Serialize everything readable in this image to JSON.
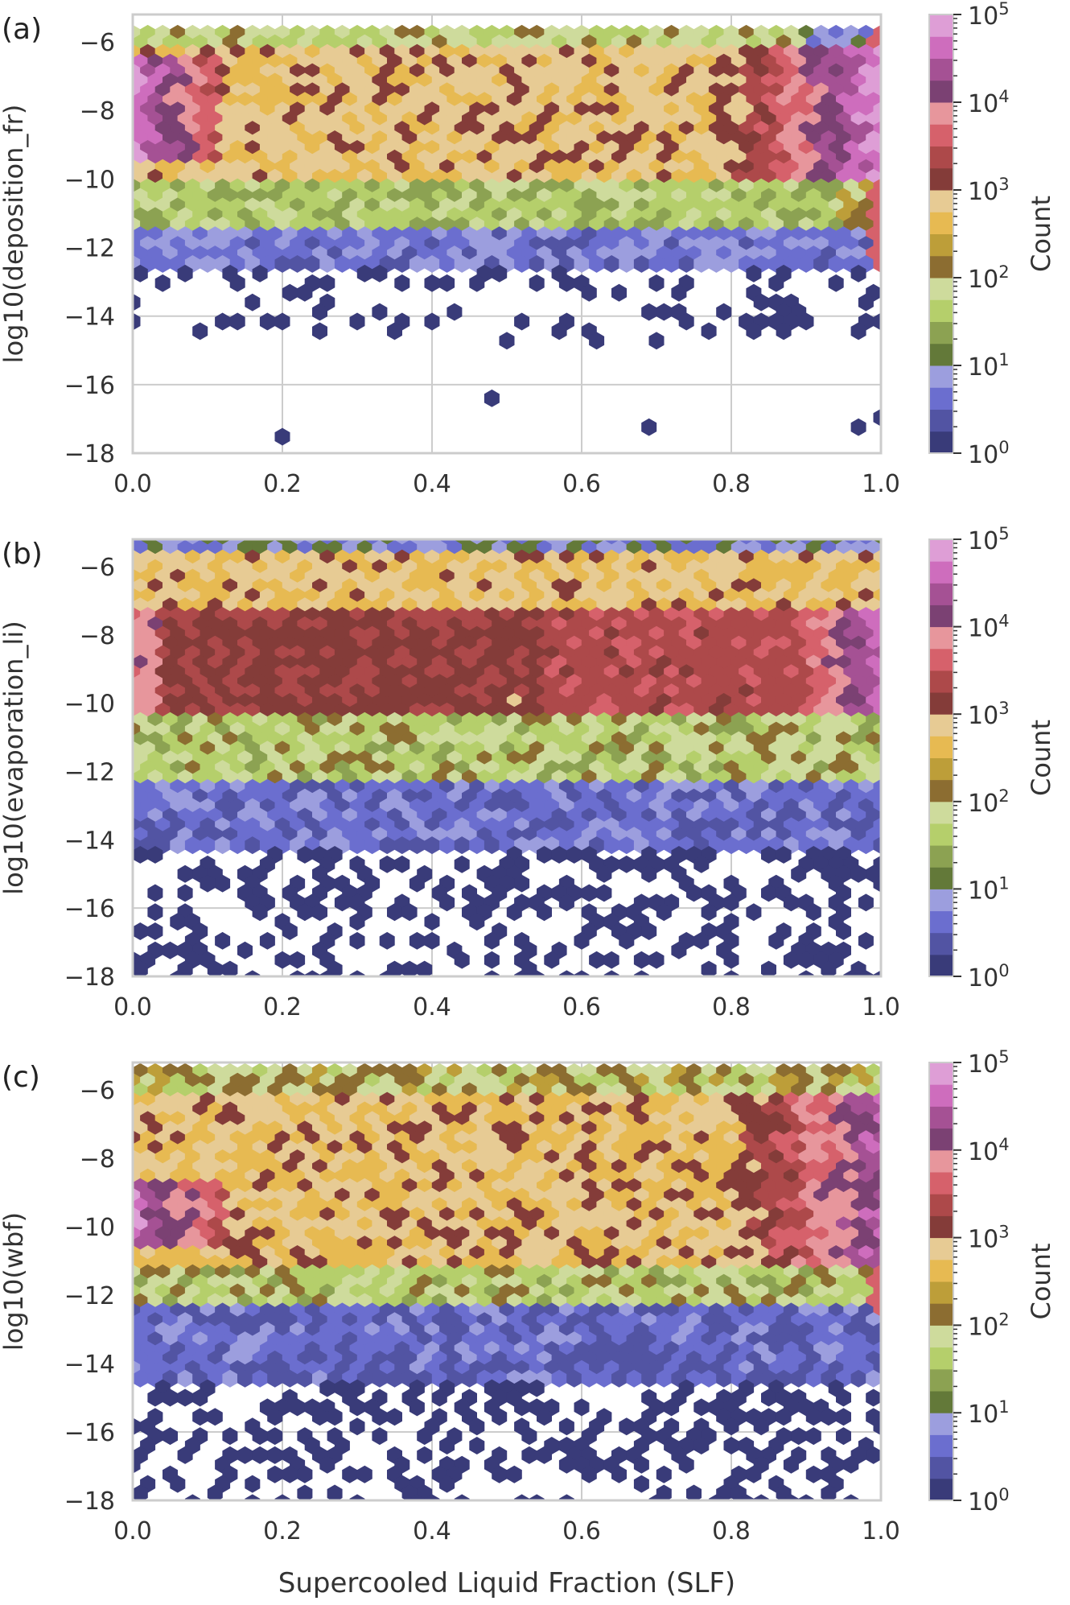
{
  "figure": {
    "xlabel": "Supercooled Liquid Fraction (SLF)",
    "colorbar_label": "Count",
    "colorbar_ticks": [
      "10",
      "10",
      "10",
      "10",
      "10",
      "10"
    ],
    "colorbar_exponents": [
      "0",
      "1",
      "2",
      "3",
      "4",
      "5"
    ],
    "colormap": [
      "#393b79",
      "#5254a3",
      "#6b6ecf",
      "#9c9ede",
      "#637939",
      "#8ca252",
      "#b5cf6b",
      "#cedb9c",
      "#8c6d31",
      "#bd9e39",
      "#e7ba52",
      "#e7cb94",
      "#843c39",
      "#ad494a",
      "#d6616b",
      "#e7969c",
      "#7b4173",
      "#a55194",
      "#ce6dbd",
      "#de9ed6"
    ]
  },
  "chart_data": [
    {
      "type": "heatmap",
      "panel_label": "(a)",
      "ylabel": "log10(deposition_fr)",
      "xlim": [
        0.0,
        1.0
      ],
      "ylim": [
        -18,
        -5.2
      ],
      "xticks": [
        "0.0",
        "0.2",
        "0.4",
        "0.6",
        "0.8",
        "1.0"
      ],
      "yticks": [
        "−6",
        "−8",
        "−10",
        "−12",
        "−14",
        "−16",
        "−18"
      ],
      "color_scale": "log",
      "clim": [
        1,
        100000
      ],
      "grid": true
    },
    {
      "type": "heatmap",
      "panel_label": "(b)",
      "ylabel": "log10(evaporation_li)",
      "xlim": [
        0.0,
        1.0
      ],
      "ylim": [
        -18,
        -5.2
      ],
      "xticks": [
        "0.0",
        "0.2",
        "0.4",
        "0.6",
        "0.8",
        "1.0"
      ],
      "yticks": [
        "−6",
        "−8",
        "−10",
        "−12",
        "−14",
        "−16",
        "−18"
      ],
      "color_scale": "log",
      "clim": [
        1,
        100000
      ],
      "grid": true
    },
    {
      "type": "heatmap",
      "panel_label": "(c)",
      "ylabel": "log10(wbf)",
      "xlim": [
        0.0,
        1.0
      ],
      "ylim": [
        -18,
        -5.2
      ],
      "xticks": [
        "0.0",
        "0.2",
        "0.4",
        "0.6",
        "0.8",
        "1.0"
      ],
      "yticks": [
        "−6",
        "−8",
        "−10",
        "−12",
        "−14",
        "−16",
        "−18"
      ],
      "color_scale": "log",
      "clim": [
        1,
        100000
      ],
      "grid": true
    }
  ]
}
